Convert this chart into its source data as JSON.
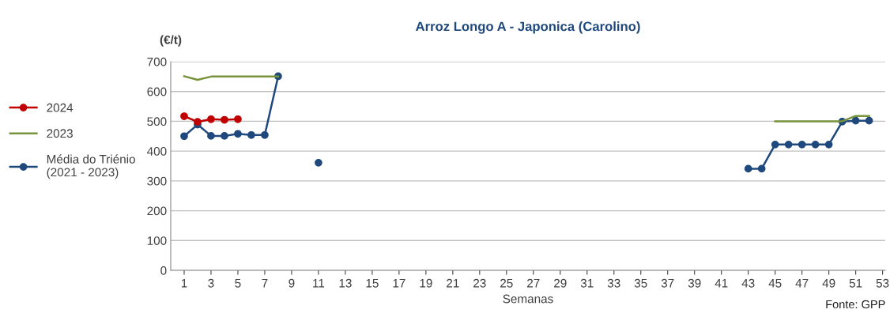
{
  "chart_data": {
    "type": "line",
    "title": "Arroz Longo A - Japonica (Carolino)",
    "ylabel": "(€/t)",
    "xlabel": "Semanas",
    "annotations": [
      "Fonte: GPP"
    ],
    "x": [
      1,
      2,
      3,
      4,
      5,
      6,
      7,
      8,
      9,
      10,
      11,
      12,
      13,
      14,
      15,
      16,
      17,
      18,
      19,
      20,
      21,
      22,
      23,
      24,
      25,
      26,
      27,
      28,
      29,
      30,
      31,
      32,
      33,
      34,
      35,
      36,
      37,
      38,
      39,
      40,
      41,
      42,
      43,
      44,
      45,
      46,
      47,
      48,
      49,
      50,
      51,
      52
    ],
    "series": [
      {
        "name": "2024",
        "color": "#c00000",
        "marker": "circle",
        "values": [
          517,
          498,
          507,
          505,
          507,
          null,
          null,
          null,
          null,
          null,
          null,
          null,
          null,
          null,
          null,
          null,
          null,
          null,
          null,
          null,
          null,
          null,
          null,
          null,
          null,
          null,
          null,
          null,
          null,
          null,
          null,
          null,
          null,
          null,
          null,
          null,
          null,
          null,
          null,
          null,
          null,
          null,
          null,
          null,
          null,
          null,
          null,
          null,
          null,
          null,
          null,
          null
        ]
      },
      {
        "name": "2023",
        "color": "#77933c",
        "marker": "none",
        "values": [
          651,
          639,
          650,
          650,
          650,
          650,
          650,
          650,
          null,
          null,
          null,
          null,
          null,
          null,
          null,
          null,
          null,
          null,
          null,
          null,
          null,
          null,
          null,
          null,
          null,
          null,
          null,
          null,
          null,
          null,
          null,
          null,
          null,
          null,
          null,
          null,
          null,
          null,
          null,
          null,
          null,
          null,
          null,
          null,
          500,
          500,
          500,
          500,
          500,
          500,
          518,
          518
        ]
      },
      {
        "name": "Média do Triénio\n(2021 - 2023)",
        "color": "#1f497d",
        "marker": "circle",
        "values": [
          450,
          489,
          451,
          451,
          458,
          454,
          454,
          651,
          null,
          null,
          361,
          null,
          null,
          null,
          null,
          null,
          null,
          null,
          null,
          null,
          null,
          null,
          null,
          null,
          null,
          null,
          null,
          null,
          null,
          null,
          null,
          null,
          null,
          null,
          null,
          null,
          null,
          null,
          null,
          null,
          null,
          null,
          341,
          341,
          422,
          422,
          422,
          422,
          422,
          499,
          502,
          502
        ]
      }
    ],
    "xlim": [
      0,
      53.2
    ],
    "xticks": [
      1,
      3,
      5,
      7,
      9,
      11,
      13,
      15,
      17,
      19,
      21,
      23,
      25,
      27,
      29,
      31,
      33,
      35,
      37,
      39,
      41,
      43,
      45,
      47,
      49,
      51,
      53
    ],
    "ylim": [
      0,
      700
    ],
    "yticks": [
      0,
      100,
      200,
      300,
      400,
      500,
      600,
      700
    ],
    "grid": "y",
    "legend": "left",
    "line_style": "solid"
  }
}
